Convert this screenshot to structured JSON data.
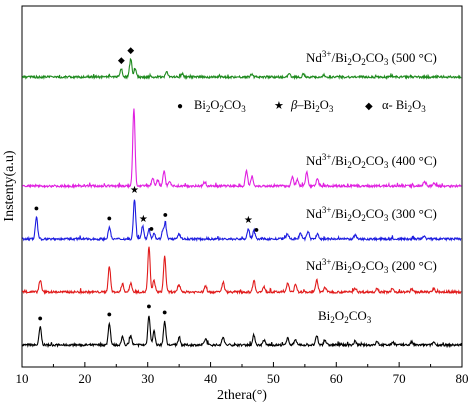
{
  "chart_data": {
    "type": "line",
    "xlabel": "2thera(°)",
    "ylabel": "Instenty(a.u)",
    "xlim": [
      10,
      80
    ],
    "xticks": [
      10,
      20,
      30,
      40,
      50,
      60,
      70,
      80
    ],
    "grid": false,
    "series": [
      {
        "name": "Bi2O2CO3",
        "label_parts": [
          "Bi",
          "2",
          "O",
          "2",
          "CO",
          "3"
        ],
        "color": "#000000",
        "offset": 0,
        "scale": 1.0,
        "peaks": [
          [
            12.9,
            18
          ],
          [
            23.9,
            22
          ],
          [
            26.0,
            8
          ],
          [
            27.3,
            9
          ],
          [
            30.2,
            30
          ],
          [
            31.0,
            14
          ],
          [
            32.7,
            24
          ],
          [
            35.0,
            7
          ],
          [
            39.2,
            6
          ],
          [
            42.0,
            8
          ],
          [
            46.9,
            10
          ],
          [
            48.5,
            5
          ],
          [
            52.3,
            7
          ],
          [
            53.5,
            6
          ],
          [
            56.9,
            9
          ],
          [
            58.2,
            5
          ],
          [
            63.0,
            4
          ],
          [
            66.5,
            4
          ],
          [
            69.0,
            3
          ],
          [
            72.0,
            3
          ],
          [
            75.5,
            3
          ]
        ]
      },
      {
        "name": "Nd³⁺/Bi2O2CO3 (200 °C)",
        "label_parts": [
          "Nd",
          "3+",
          "/Bi",
          "2",
          "O",
          "2",
          "CO",
          "3",
          " (200 °C)"
        ],
        "color": "#e11b1b",
        "offset": 1,
        "scale": 1.0,
        "peaks": [
          [
            12.9,
            12
          ],
          [
            23.9,
            26
          ],
          [
            26.0,
            8
          ],
          [
            27.3,
            9
          ],
          [
            30.2,
            45
          ],
          [
            31.0,
            12
          ],
          [
            32.7,
            36
          ],
          [
            35.0,
            7
          ],
          [
            39.2,
            6
          ],
          [
            42.0,
            10
          ],
          [
            46.9,
            12
          ],
          [
            48.5,
            5
          ],
          [
            52.3,
            9
          ],
          [
            53.5,
            7
          ],
          [
            56.9,
            12
          ],
          [
            58.2,
            5
          ],
          [
            63.0,
            4
          ],
          [
            66.5,
            4
          ],
          [
            69.0,
            3
          ],
          [
            72.0,
            3
          ],
          [
            75.5,
            3
          ]
        ]
      },
      {
        "name": "Nd³⁺/Bi2O2CO3 (300 °C)",
        "label_parts": [
          "Nd",
          "3+",
          "/Bi",
          "2",
          "O",
          "2",
          "CO",
          "3",
          " (300 °C)"
        ],
        "color": "#1c1ce0",
        "offset": 2,
        "scale": 1.0,
        "peaks": [
          [
            12.3,
            22
          ],
          [
            23.9,
            12
          ],
          [
            27.9,
            40
          ],
          [
            29.2,
            13
          ],
          [
            30.2,
            10
          ],
          [
            31.0,
            6
          ],
          [
            32.4,
            8
          ],
          [
            32.8,
            15
          ],
          [
            35.0,
            5
          ],
          [
            46.0,
            10
          ],
          [
            46.9,
            8
          ],
          [
            52.2,
            5
          ],
          [
            54.3,
            6
          ],
          [
            55.5,
            8
          ],
          [
            57.0,
            5
          ],
          [
            63.0,
            4
          ],
          [
            74.0,
            3
          ]
        ]
      },
      {
        "name": "Nd³⁺/Bi2O2CO3 (400 °C)",
        "label_parts": [
          "Nd",
          "3+",
          "/Bi",
          "2",
          "O",
          "2",
          "CO",
          "3",
          " (400 °C)"
        ],
        "color": "#e020e0",
        "offset": 3,
        "scale": 1.0,
        "peaks": [
          [
            27.8,
            78
          ],
          [
            30.8,
            8
          ],
          [
            31.6,
            6
          ],
          [
            32.6,
            15
          ],
          [
            33.5,
            5
          ],
          [
            39.0,
            4
          ],
          [
            45.7,
            15
          ],
          [
            46.6,
            10
          ],
          [
            53.0,
            9
          ],
          [
            53.8,
            7
          ],
          [
            55.3,
            14
          ],
          [
            57.0,
            7
          ],
          [
            74.0,
            4
          ],
          [
            75.5,
            3
          ]
        ]
      },
      {
        "name": "Nd³⁺/Bi2O2CO3 (500 °C)",
        "label_parts": [
          "Nd",
          "3+",
          "/Bi",
          "2",
          "O",
          "2",
          "CO",
          "3",
          " (500 °C)"
        ],
        "color": "#1e8a1e",
        "offset": 4,
        "scale": 1.0,
        "peaks": [
          [
            25.8,
            8
          ],
          [
            27.3,
            18
          ],
          [
            28.0,
            8
          ],
          [
            33.0,
            6
          ],
          [
            35.5,
            3
          ],
          [
            46.5,
            3
          ],
          [
            52.5,
            3
          ],
          [
            54.8,
            3
          ],
          [
            58.0,
            2
          ]
        ]
      }
    ],
    "markers": [
      {
        "series": 0,
        "x": 12.9,
        "symbol": "●"
      },
      {
        "series": 0,
        "x": 23.9,
        "symbol": "●"
      },
      {
        "series": 0,
        "x": 30.2,
        "symbol": "●"
      },
      {
        "series": 0,
        "x": 32.7,
        "symbol": "●"
      },
      {
        "series": 2,
        "x": 12.3,
        "symbol": "●"
      },
      {
        "series": 2,
        "x": 23.9,
        "symbol": "●"
      },
      {
        "series": 2,
        "x": 27.9,
        "symbol": "★"
      },
      {
        "series": 2,
        "x": 29.3,
        "symbol": "★"
      },
      {
        "series": 2,
        "x": 30.6,
        "symbol": "●"
      },
      {
        "series": 2,
        "x": 32.8,
        "symbol": "●"
      },
      {
        "series": 2,
        "x": 46.0,
        "symbol": "★"
      },
      {
        "series": 2,
        "x": 47.3,
        "symbol": "●"
      },
      {
        "series": 4,
        "x": 25.8,
        "symbol": "◆"
      },
      {
        "series": 4,
        "x": 27.3,
        "symbol": "◆"
      }
    ],
    "legend": [
      {
        "symbol": "●",
        "parts": [
          "Bi",
          "2",
          "O",
          "2",
          "CO",
          "3"
        ]
      },
      {
        "symbol": "★",
        "parts": [
          "β",
          "",
          "‒Bi",
          "2",
          "O",
          "3"
        ]
      },
      {
        "symbol": "◆",
        "parts": [
          "α- Bi",
          "2",
          "O",
          "3"
        ]
      }
    ]
  }
}
